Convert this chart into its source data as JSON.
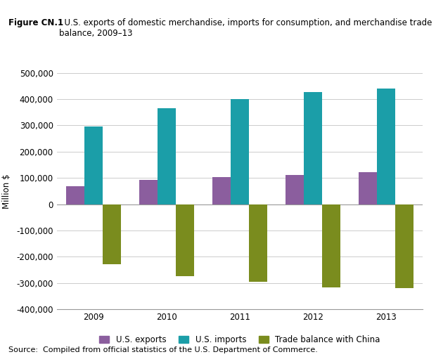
{
  "years": [
    "2009",
    "2010",
    "2011",
    "2012",
    "2013"
  ],
  "exports": [
    69000,
    91800,
    103900,
    110600,
    121700
  ],
  "imports": [
    296400,
    364900,
    399400,
    425600,
    440400
  ],
  "trade_balance": [
    -226800,
    [
      -273000
    ],
    [
      -296000
    ],
    [
      -315000
    ],
    [
      -318000
    ]
  ],
  "exports_color": "#8B5E9E",
  "imports_color": "#1B9EA8",
  "balance_color": "#7A8C1E",
  "title_bold": "Figure CN.1",
  "title_rest": "  U.S. exports of domestic merchandise, imports for consumption, and merchandise trade\nbalance, 2009–13",
  "ylabel": "Million $",
  "ylim_min": -400000,
  "ylim_max": 500000,
  "yticks": [
    -400000,
    -300000,
    -200000,
    -100000,
    0,
    100000,
    200000,
    300000,
    400000,
    500000
  ],
  "source_text": "Source:  Compiled from official statistics of the U.S. Department of Commerce.",
  "legend_labels": [
    "U.S. exports",
    "U.S. imports",
    "Trade balance with China"
  ],
  "header_bg": "#E8E8E8",
  "source_bg": "#E8E8E8",
  "bar_width": 0.25
}
